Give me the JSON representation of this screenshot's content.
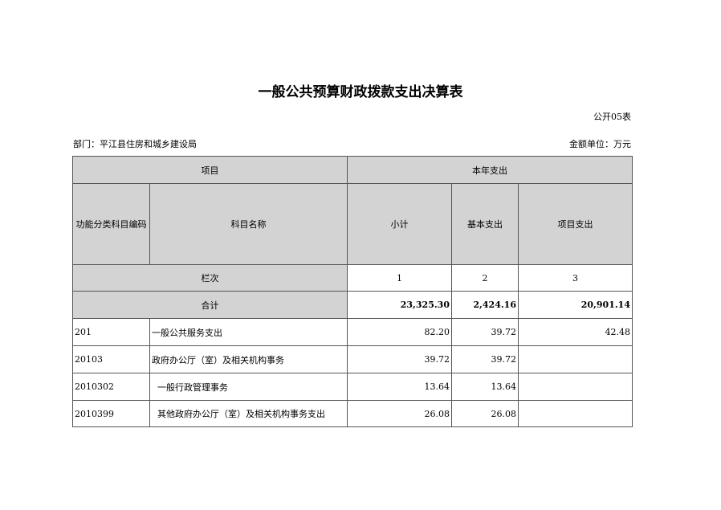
{
  "title": "一般公共预算财政拨款支出决算表",
  "form_code": "公开05表",
  "department": "部门：平江县住房和城乡建设局",
  "unit": "金额单位：万元",
  "header": {
    "project": "项目",
    "current_year": "本年支出",
    "func_code": "功能分类科目编码",
    "subject_name": "科目名称",
    "subtotal": "小计",
    "basic": "基本支出",
    "project_exp": "项目支出",
    "column_index": "栏次",
    "col1": "1",
    "col2": "2",
    "col3": "3"
  },
  "total": {
    "label": "合计",
    "subtotal": "23,325.30",
    "basic": "2,424.16",
    "project": "20,901.14"
  },
  "rows": [
    {
      "code": "201",
      "name": "一般公共服务支出",
      "subtotal": "82.20",
      "basic": "39.72",
      "project": "42.48"
    },
    {
      "code": "20103",
      "name": "政府办公厅（室）及相关机构事务",
      "subtotal": "39.72",
      "basic": "39.72",
      "project": ""
    },
    {
      "code": "2010302",
      "name": "  一般行政管理事务",
      "subtotal": "13.64",
      "basic": "13.64",
      "project": ""
    },
    {
      "code": "2010399",
      "name": "  其他政府办公厅（室）及相关机构事务支出",
      "subtotal": "26.08",
      "basic": "26.08",
      "project": ""
    }
  ]
}
